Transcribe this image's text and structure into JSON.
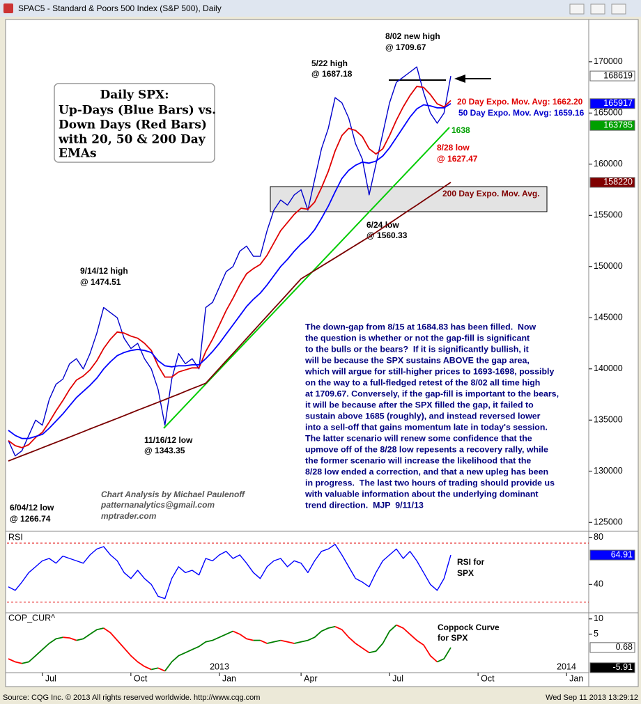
{
  "window_title": "SPAC5 - Standard & Poors 500 Index (S&P 500), Daily",
  "footer": {
    "source": "Source: CQG Inc. © 2013 All rights reserved worldwide. http://www.cqg.com",
    "timestamp": "Wed Sep 11 2013 13:29:12"
  },
  "chart_data": [
    {
      "type": "line",
      "title_box": [
        "Daily SPX:",
        "Up-Days (Blue Bars) vs.",
        "Down Days (Red Bars)",
        "with 20, 50 & 200 Day",
        "EMAs"
      ],
      "categories": [
        null,
        null,
        null,
        null,
        null,
        "Jul",
        null,
        null,
        null,
        null,
        null,
        null,
        null,
        null,
        null,
        null,
        null,
        null,
        "Oct",
        null,
        null,
        null,
        null,
        null,
        null,
        null,
        null,
        null,
        null,
        null,
        null,
        "Jan",
        null,
        null,
        null,
        null,
        null,
        null,
        null,
        null,
        null,
        null,
        null,
        "Apr",
        null,
        null,
        null,
        null,
        null,
        null,
        null,
        null,
        null,
        null,
        null,
        null,
        "Jul",
        null,
        null,
        null,
        null,
        null,
        null,
        null,
        null,
        null,
        null,
        null,
        null,
        "Oct",
        null,
        null,
        null,
        null,
        null,
        null,
        null,
        null,
        null,
        null,
        null,
        null,
        "Jan",
        null,
        null,
        null
      ],
      "years": [
        "2013",
        "2014"
      ],
      "ylim": [
        124200,
        174000
      ],
      "yticks": [
        125000,
        130000,
        135000,
        140000,
        145000,
        150000,
        155000,
        160000,
        165000,
        170000
      ],
      "series": [
        {
          "color": "#0000cc",
          "values": [
            133000,
            131500,
            132000,
            133500,
            135000,
            134500,
            137000,
            138500,
            139000,
            140500,
            141000,
            140000,
            141500,
            143500,
            146000,
            145500,
            145000,
            143000,
            142000,
            142500,
            141000,
            140000,
            138000,
            134500,
            139000,
            141500,
            140500,
            141000,
            140000,
            146000,
            146500,
            148000,
            149500,
            150000,
            151500,
            152000,
            151000,
            151000,
            153500,
            155500,
            156500,
            156000,
            157000,
            157500,
            155500,
            158500,
            161500,
            163500,
            166500,
            166000,
            164500,
            162000,
            160500,
            157000,
            160000,
            163000,
            166000,
            168000,
            168500,
            169000,
            169500,
            167000,
            165000,
            164000,
            165000,
            168619,
            null,
            null,
            null,
            null,
            null,
            null,
            null,
            null,
            null,
            null,
            null,
            null,
            null,
            null,
            null,
            null,
            null,
            null,
            null,
            null
          ]
        },
        {
          "color": "#e00000",
          "values": [
            133000,
            132500,
            132300,
            132600,
            133300,
            133800,
            134800,
            135900,
            136900,
            138000,
            138900,
            139300,
            139900,
            140800,
            142000,
            142900,
            143600,
            143500,
            143200,
            143000,
            142500,
            141800,
            140300,
            139200,
            139200,
            139700,
            139900,
            140100,
            140100,
            141700,
            142900,
            144300,
            145700,
            146900,
            148200,
            149300,
            149800,
            150200,
            151100,
            152300,
            153500,
            154300,
            155100,
            155700,
            155600,
            156300,
            157700,
            159300,
            161300,
            162800,
            163500,
            163300,
            162700,
            161500,
            161000,
            161500,
            162800,
            164300,
            165600,
            166700,
            167600,
            167500,
            166800,
            165900,
            165600,
            166220,
            null,
            null,
            null,
            null,
            null,
            null,
            null,
            null,
            null,
            null,
            null,
            null,
            null,
            null,
            null,
            null,
            null,
            null,
            null,
            null
          ]
        },
        {
          "color": "#0000ff",
          "values": [
            134000,
            133500,
            133200,
            133200,
            133400,
            133600,
            134200,
            134900,
            135600,
            136400,
            137200,
            137800,
            138400,
            139100,
            140000,
            140700,
            141300,
            141600,
            141800,
            141900,
            141800,
            141600,
            140800,
            140300,
            140200,
            140300,
            140300,
            140400,
            140400,
            141000,
            141700,
            142500,
            143400,
            144300,
            145200,
            146100,
            146800,
            147400,
            148200,
            149100,
            150000,
            150700,
            151500,
            152200,
            152800,
            153600,
            154700,
            155900,
            157300,
            158600,
            159400,
            159900,
            160200,
            160100,
            160300,
            160800,
            161600,
            162600,
            163600,
            164600,
            165400,
            165800,
            165700,
            165500,
            165500,
            165917,
            null,
            null,
            null,
            null,
            null,
            null,
            null,
            null,
            null,
            null,
            null,
            null,
            null,
            null,
            null,
            null,
            null,
            null,
            null,
            null
          ]
        },
        {
          "color": "#7a0000",
          "values": [
            131000,
            131260,
            131520,
            131780,
            132040,
            132300,
            132560,
            132820,
            133080,
            133340,
            133600,
            133870,
            134130,
            134390,
            134650,
            134910,
            135170,
            135430,
            135700,
            135960,
            136220,
            136480,
            136740,
            137000,
            137270,
            137530,
            137800,
            138070,
            138330,
            138600,
            139330,
            140060,
            140790,
            141510,
            142240,
            142970,
            143700,
            144430,
            145160,
            145890,
            146610,
            147340,
            148070,
            148800,
            149210,
            149620,
            150030,
            150440,
            150850,
            151260,
            151670,
            152080,
            152490,
            152900,
            153340,
            153790,
            154230,
            154670,
            155120,
            155560,
            156000,
            156450,
            156890,
            157330,
            157780,
            158220,
            null,
            null,
            null,
            null,
            null,
            null,
            null,
            null,
            null,
            null,
            null,
            null,
            null,
            null,
            null,
            null,
            null,
            null,
            null,
            null
          ]
        }
      ],
      "value_boxes": [
        {
          "value": 168619,
          "color": "#ffffff",
          "text_color": "#000000"
        },
        {
          "value": 165917,
          "color": "#0000ff",
          "text_color": "#ffffff"
        },
        {
          "value": 163785,
          "color": "#00a000",
          "text_color": "#ffffff"
        },
        {
          "value": 158220,
          "color": "#800000",
          "text_color": "#ffffff"
        }
      ],
      "annotations": [
        "8/02 new high",
        "@ 1709.67",
        "5/22 high",
        "@ 1687.18",
        "20 Day Expo. Mov. Avg: 1662.20",
        "50 Day Expo. Mov. Avg: 1659.16",
        "1638",
        "8/28 low",
        "@ 1627.47",
        "200 Day Expo. Mov. Avg.",
        "6/24 low",
        "@ 1560.33",
        "9/14/12 high",
        "@ 1474.51",
        "11/16/12 low",
        "@ 1343.35",
        "6/04/12 low",
        "@ 1266.74"
      ],
      "commentary": [
        "The down-gap from 8/15 at 1684.83 has been filled.  Now",
        "the question is whether or not the gap-fill is significant",
        "to the bulls or the bears?  If it is significantly bullish, it",
        "will be because the SPX sustains ABOVE the gap area,",
        "which will argue for still-higher prices to 1693-1698, possibly",
        "on the way to a full-fledged retest of the 8/02 all time high",
        "at 1709.67. Conversely, if the gap-fill is important to the bears,",
        "it will be because after the SPX filled the gap, it failed to",
        "sustain above 1685 (roughly), and instead reversed lower",
        "into a sell-off that gains momentum late in today's session.",
        "The latter scenario will renew some confidence that the",
        "upmove off of the 8/28 low repesents a recovery rally, while",
        "the former scenario will increase the likelihood that the",
        "8/28 low ended a correction, and that a new upleg has been",
        "in progress.  The last two hours of trading should provide us",
        "with valuable information about the underlying dominant",
        "trend direction.  MJP  9/11/13"
      ],
      "credits": [
        "Chart Analysis by Michael Paulenoff",
        "patternanalytics@gmail.com",
        "mptrader.com"
      ]
    },
    {
      "type": "line",
      "title": "RSI",
      "label": [
        "RSI for",
        "SPX"
      ],
      "ylim": [
        16,
        85
      ],
      "yticks": [
        40,
        80
      ],
      "ref_lines": [
        75,
        25
      ],
      "series": [
        {
          "color": "#0000ff",
          "values": [
            38,
            35,
            42,
            50,
            55,
            60,
            62,
            58,
            64,
            62,
            60,
            58,
            65,
            70,
            72,
            65,
            60,
            50,
            45,
            52,
            45,
            40,
            30,
            28,
            45,
            55,
            50,
            52,
            48,
            62,
            60,
            65,
            68,
            62,
            65,
            58,
            50,
            45,
            55,
            60,
            62,
            55,
            60,
            58,
            50,
            60,
            68,
            70,
            74,
            65,
            55,
            45,
            42,
            38,
            50,
            60,
            65,
            70,
            62,
            68,
            60,
            50,
            40,
            35,
            45,
            64.91,
            null,
            null,
            null,
            null,
            null,
            null,
            null,
            null,
            null,
            null,
            null,
            null,
            null,
            null,
            null,
            null,
            null,
            null,
            null,
            null
          ]
        }
      ],
      "value_boxes": [
        {
          "value": 64.91,
          "color": "#0000ff",
          "text_color": "#ffffff"
        }
      ]
    },
    {
      "type": "line",
      "title": "COP_CUR^",
      "label": [
        "Coppock Curve",
        "for SPX"
      ],
      "ylim": [
        -7.3,
        12
      ],
      "yticks": [
        10,
        5
      ],
      "up_color": "#008000",
      "down_color": "#ff0000",
      "series": [
        {
          "values": [
            -3,
            -4,
            -4.5,
            -4,
            -2,
            0,
            2,
            3.5,
            4,
            3.8,
            3,
            3.5,
            5,
            6.5,
            7,
            5.5,
            3,
            0.5,
            -2,
            -4,
            -5.5,
            -6.5,
            -6,
            -7,
            -4,
            -2,
            -1,
            0,
            1,
            2.5,
            3,
            4,
            5,
            6,
            5,
            3.5,
            3,
            3,
            2,
            2.5,
            3,
            2.5,
            2,
            2.5,
            3,
            4,
            6,
            7,
            7.5,
            6.5,
            4,
            2,
            0.5,
            -1,
            -0.5,
            2,
            6,
            8,
            7,
            5,
            3,
            1.5,
            -2,
            -4,
            -3,
            0.68,
            null,
            null,
            null,
            null,
            null,
            null,
            null,
            null,
            null,
            null,
            null,
            null,
            null,
            null,
            null,
            null,
            null,
            null,
            null,
            null
          ]
        }
      ],
      "value_boxes": [
        {
          "value": 0.68,
          "color": "#ffffff",
          "text_color": "#000000"
        },
        {
          "value": -5.91,
          "color": "#000000",
          "text_color": "#ffffff"
        }
      ]
    }
  ]
}
